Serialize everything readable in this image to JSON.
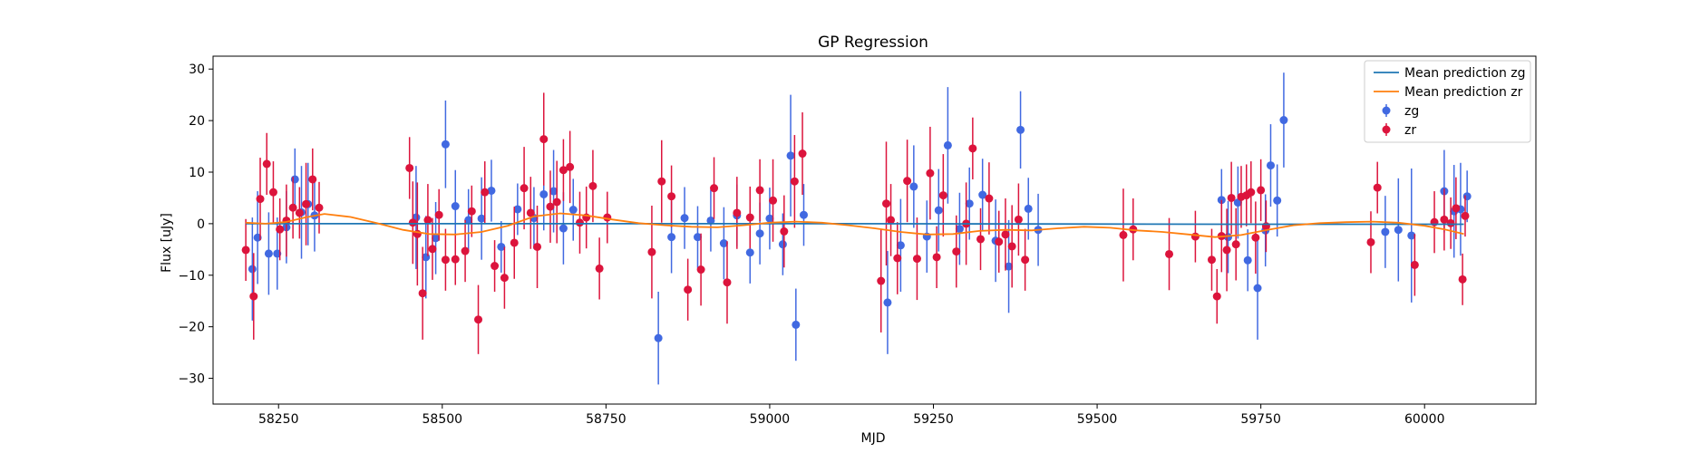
{
  "chart_data": {
    "type": "scatter",
    "title": "GP Regression",
    "xlabel": "MJD",
    "ylabel": "Flux [uJy]",
    "xlim": [
      58150,
      60170
    ],
    "ylim": [
      -35,
      32.5
    ],
    "xticks": [
      58250,
      58500,
      58750,
      59000,
      59250,
      59500,
      59750,
      60000
    ],
    "yticks": [
      -30,
      -20,
      -10,
      0,
      10,
      20,
      30
    ],
    "xtick_labels": [
      "58250",
      "58500",
      "58750",
      "59000",
      "59250",
      "59500",
      "59750",
      "60000"
    ],
    "ytick_labels": [
      "−30",
      "−20",
      "−10",
      "0",
      "10",
      "20",
      "30"
    ],
    "grid": false,
    "legend": {
      "position": "top-right",
      "entries": [
        "Mean prediction zg",
        "Mean prediction zr",
        "zg",
        "zr"
      ]
    },
    "colors": {
      "mean_zg": "#1f77b4",
      "mean_zr": "#ff7f0e",
      "zg": "#4169e1",
      "zr": "#dc143c"
    },
    "series": [
      {
        "name": "Mean prediction zg",
        "kind": "line",
        "x": [
          58200,
          58500,
          58800,
          59100,
          59400,
          59700,
          60000,
          60060
        ],
        "y": [
          0.0,
          0.0,
          0.0,
          0.0,
          -0.05,
          -0.1,
          -0.1,
          -0.1
        ]
      },
      {
        "name": "Mean prediction zr",
        "kind": "line",
        "x": [
          58200,
          58230,
          58260,
          58290,
          58320,
          58360,
          58400,
          58440,
          58480,
          58520,
          58560,
          58600,
          58640,
          58680,
          58720,
          58760,
          58800,
          58840,
          58880,
          58920,
          58960,
          59000,
          59040,
          59080,
          59120,
          59160,
          59200,
          59240,
          59280,
          59320,
          59360,
          59400,
          59440,
          59480,
          59520,
          59560,
          59600,
          59640,
          59680,
          59720,
          59760,
          59800,
          59840,
          59880,
          59920,
          59960,
          60000,
          60030,
          60060
        ],
        "y": [
          0.2,
          0.0,
          0.3,
          1.2,
          1.9,
          1.3,
          0.1,
          -1.2,
          -2.0,
          -2.1,
          -1.6,
          -0.4,
          1.4,
          2.0,
          1.6,
          0.8,
          0.1,
          -0.3,
          -0.6,
          -0.7,
          -0.3,
          0.2,
          0.4,
          0.2,
          -0.3,
          -0.9,
          -1.6,
          -2.1,
          -2.0,
          -1.4,
          -1.2,
          -1.3,
          -0.9,
          -0.6,
          -0.8,
          -1.3,
          -1.6,
          -2.1,
          -2.6,
          -2.2,
          -1.2,
          -0.3,
          0.1,
          0.3,
          0.4,
          0.2,
          -0.4,
          -1.1,
          -2.0
        ]
      },
      {
        "name": "zg",
        "kind": "errorbar",
        "x": [
          58210,
          58218,
          58235,
          58248,
          58262,
          58275,
          58285,
          58295,
          58305,
          58460,
          58475,
          58490,
          58505,
          58520,
          58540,
          58560,
          58575,
          58590,
          58615,
          58640,
          58655,
          58670,
          58685,
          58700,
          58830,
          58850,
          58870,
          58890,
          58910,
          58930,
          58950,
          58970,
          58985,
          59000,
          59020,
          59032,
          59040,
          59052,
          59180,
          59200,
          59220,
          59240,
          59258,
          59272,
          59290,
          59305,
          59325,
          59345,
          59365,
          59383,
          59395,
          59410,
          59690,
          59700,
          59715,
          59730,
          59745,
          59757,
          59765,
          59775,
          59785,
          59940,
          59960,
          59980,
          60030,
          60045,
          60055,
          60065
        ],
        "y": [
          -8.8,
          -2.7,
          -5.8,
          -5.8,
          -0.7,
          8.6,
          2.2,
          3.8,
          1.6,
          1.2,
          -6.5,
          -2.8,
          15.4,
          3.4,
          0.7,
          1.0,
          6.4,
          -4.5,
          2.8,
          1.1,
          5.7,
          6.3,
          -0.9,
          2.7,
          -22.2,
          -2.6,
          1.1,
          -2.6,
          0.6,
          -3.8,
          1.6,
          -5.6,
          -1.9,
          1.0,
          -4.0,
          13.2,
          -19.6,
          1.7,
          -15.3,
          -4.2,
          7.2,
          -2.5,
          2.6,
          15.2,
          -1.0,
          3.9,
          5.6,
          -3.3,
          -8.3,
          18.2,
          2.9,
          -1.2,
          4.6,
          -2.6,
          4.1,
          -7.1,
          -12.5,
          -1.3,
          11.3,
          4.5,
          20.1,
          -1.6,
          -1.2,
          -2.3,
          6.3,
          2.4,
          2.8,
          5.3
        ],
        "err": [
          10,
          9,
          8,
          7,
          7,
          6,
          9,
          8,
          7,
          10,
          8,
          7,
          8.5,
          7,
          6,
          8,
          6,
          5,
          5,
          6,
          7,
          8,
          7,
          6,
          9,
          7,
          6,
          6,
          6,
          7,
          6,
          6,
          6,
          6,
          6,
          11.8,
          7,
          6,
          10,
          9,
          8,
          7,
          8,
          11.3,
          7,
          7,
          7,
          8,
          9,
          7.5,
          6,
          7,
          6,
          7,
          7,
          6,
          10,
          7,
          8,
          7,
          9.2,
          7,
          10,
          13,
          8,
          9,
          9,
          5
        ]
      },
      {
        "name": "zr",
        "kind": "errorbar",
        "x": [
          58200,
          58212,
          58222,
          58232,
          58242,
          58252,
          58262,
          58272,
          58282,
          58292,
          58302,
          58312,
          58450,
          58455,
          58462,
          58470,
          58478,
          58485,
          58495,
          58505,
          58520,
          58535,
          58545,
          58555,
          58565,
          58580,
          58595,
          58610,
          58625,
          58635,
          58645,
          58655,
          58665,
          58675,
          58685,
          58695,
          58710,
          58720,
          58730,
          58740,
          58752,
          58820,
          58835,
          58850,
          58875,
          58895,
          58915,
          58935,
          58950,
          58970,
          58985,
          59005,
          59022,
          59038,
          59050,
          59170,
          59178,
          59185,
          59195,
          59210,
          59225,
          59245,
          59255,
          59265,
          59285,
          59300,
          59310,
          59322,
          59335,
          59350,
          59360,
          59370,
          59380,
          59390,
          59540,
          59555,
          59610,
          59650,
          59675,
          59683,
          59690,
          59698,
          59705,
          59712,
          59720,
          59728,
          59735,
          59742,
          59750,
          59758,
          59918,
          59928,
          59985,
          60015,
          60030,
          60040,
          60048,
          60058,
          60062
        ],
        "y": [
          -5.1,
          -14.1,
          4.8,
          11.6,
          6.1,
          -1.1,
          0.6,
          3.1,
          2.1,
          3.8,
          8.6,
          3.1,
          10.8,
          0.2,
          -2.0,
          -13.5,
          0.7,
          -4.9,
          1.7,
          -7.0,
          -6.9,
          -5.3,
          2.4,
          -18.6,
          6.1,
          -8.2,
          -10.5,
          -3.7,
          6.9,
          2.1,
          -4.5,
          16.4,
          3.3,
          4.2,
          10.4,
          11.0,
          0.2,
          1.2,
          7.3,
          -8.7,
          1.2,
          -5.5,
          8.2,
          5.3,
          -12.8,
          -8.9,
          6.9,
          -11.4,
          2.1,
          1.2,
          6.5,
          4.5,
          -1.5,
          8.2,
          13.6,
          -11.1,
          3.9,
          0.7,
          -6.7,
          8.3,
          -6.8,
          9.8,
          -6.5,
          5.5,
          -5.4,
          0.0,
          14.6,
          -3.0,
          4.9,
          -3.5,
          -2.1,
          -4.4,
          0.8,
          -7.0,
          -2.2,
          -1.1,
          -5.9,
          -2.5,
          -7.0,
          -14.1,
          -2.4,
          -5.1,
          5.0,
          -4.0,
          5.2,
          5.5,
          6.1,
          -2.7,
          6.5,
          -0.5,
          -3.6,
          7.0,
          -8.0,
          0.3,
          0.8,
          0.1,
          3.0,
          -10.8,
          1.5
        ],
        "err": [
          6,
          8.4,
          8,
          6,
          6,
          6,
          7,
          6,
          5,
          8,
          6,
          5,
          6,
          8,
          10,
          9,
          7,
          6,
          5,
          6,
          5,
          6,
          5,
          6.7,
          6,
          5,
          6,
          7,
          8,
          7,
          8,
          9,
          7,
          8,
          6,
          7,
          6,
          6,
          7,
          6,
          5,
          9,
          8,
          6,
          6,
          7,
          6,
          8,
          7,
          6,
          6,
          8,
          7,
          9,
          8,
          10,
          12,
          7,
          7,
          8,
          8,
          9,
          6,
          8,
          7,
          8,
          6,
          6,
          7,
          6,
          7,
          8,
          7,
          6,
          9,
          6,
          7,
          5,
          6,
          5.3,
          7,
          8,
          7,
          7,
          6,
          6,
          6,
          7,
          6,
          5,
          6,
          5,
          6,
          6,
          6,
          5,
          6,
          5,
          4
        ]
      }
    ]
  }
}
